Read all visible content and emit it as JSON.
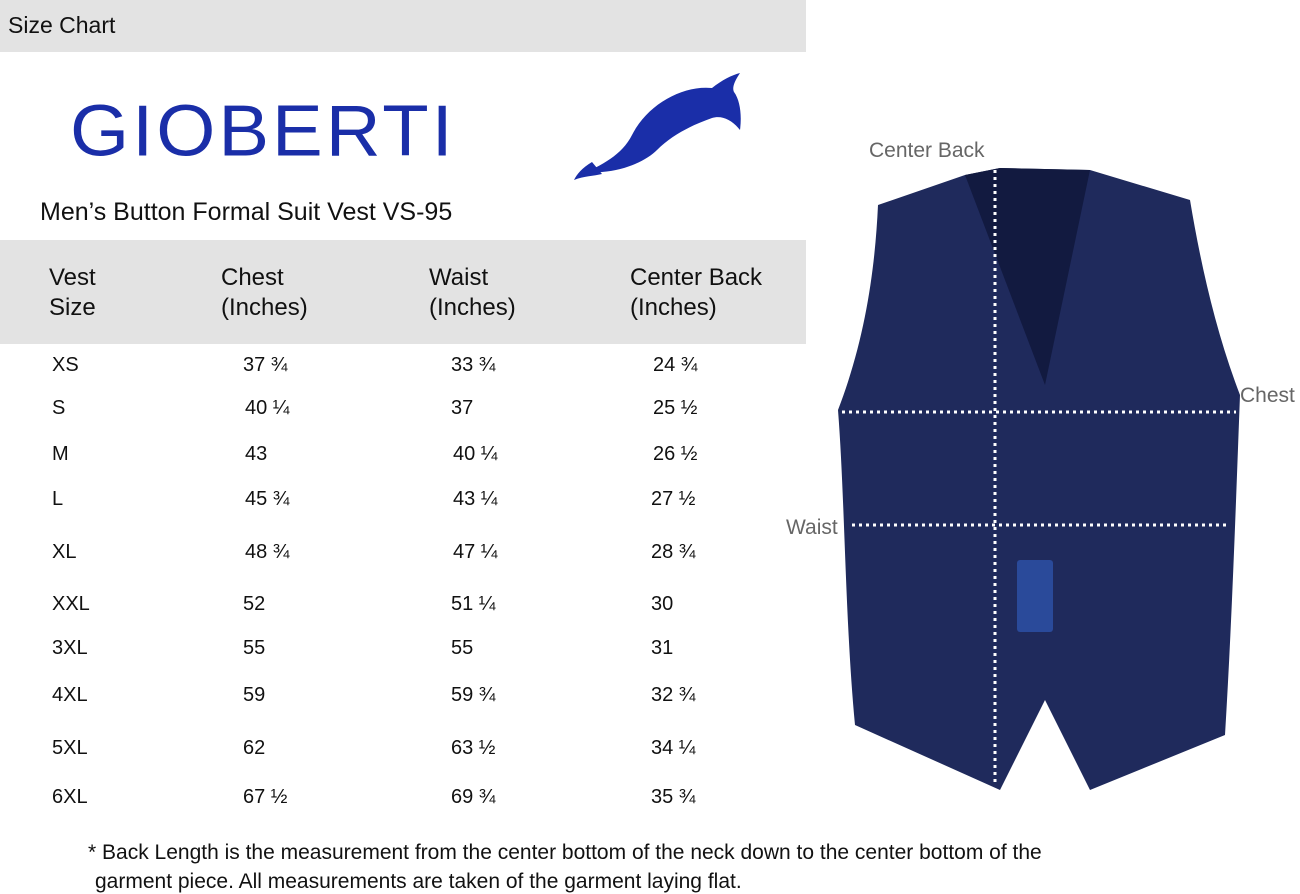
{
  "header": {
    "title": "Size Chart"
  },
  "brand": {
    "name": "GIOBERTI",
    "color": "#1a2ea8",
    "logo_icon": "dolphin-icon"
  },
  "product_title": "Men’s Button Formal Suit Vest VS-95",
  "table": {
    "headers": [
      {
        "line1": "Vest",
        "line2": "Size"
      },
      {
        "line1": "Chest",
        "line2": "(Inches)"
      },
      {
        "line1": "Waist",
        "line2": "(Inches)"
      },
      {
        "line1": "Center Back",
        "line2": "(Inches)"
      }
    ],
    "rows": [
      [
        "XS",
        "37 ¾",
        "33 ¾",
        "24 ¾"
      ],
      [
        "S",
        "40 ¼",
        "37",
        "25 ½"
      ],
      [
        "M",
        "43",
        "40 ¼",
        "26 ½"
      ],
      [
        "L",
        "45 ¾",
        "43 ¼",
        "27 ½"
      ],
      [
        "XL",
        "48 ¾",
        "47 ¼",
        "28 ¾"
      ],
      [
        "XXL",
        "52",
        "51 ¼",
        "30"
      ],
      [
        "3XL",
        "55",
        "55",
        "31"
      ],
      [
        "4XL",
        "59",
        "59 ¾",
        "32 ¾"
      ],
      [
        "5XL",
        "62",
        "63 ½",
        "34 ¼"
      ],
      [
        "6XL",
        "67 ½",
        "69 ¾",
        "35 ¾"
      ]
    ]
  },
  "diagram": {
    "labels": {
      "center_back": "Center Back",
      "chest": "Chest",
      "waist": "Waist"
    },
    "vest_color": "#1f2a5c"
  },
  "footnote": {
    "line1": "* Back Length is the measurement from the center bottom of the neck down to the center bottom of the",
    "line2": "garment piece. All measurements are taken of the garment laying flat."
  }
}
